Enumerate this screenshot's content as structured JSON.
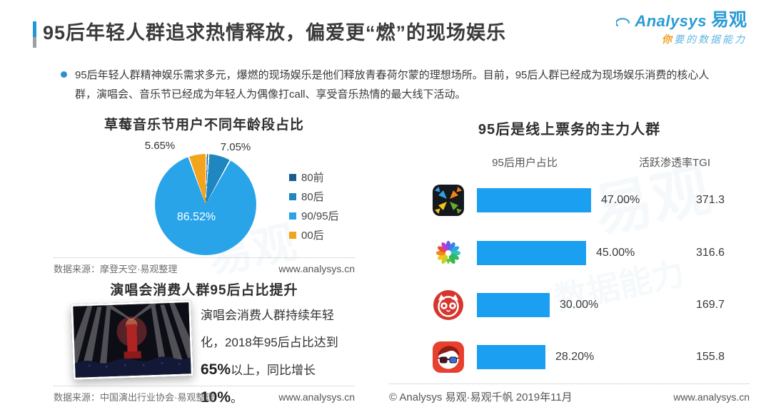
{
  "header": {
    "title": "95后年轻人群追求热情释放，偏爱更“燃”的现场娱乐",
    "logo": {
      "brand_en": "Analysys",
      "brand_cn": "易观",
      "tagline_highlight": "你",
      "tagline_rest": "要的数据能力"
    }
  },
  "summary": "95后年轻人群精神娱乐需求多元，爆燃的现场娱乐是他们释放青春荷尔蒙的理想场所。目前，95后人群已经成为现场娱乐消费的核心人群，演唱会、音乐节已经成为年轻人为偶像打call、享受音乐热情的最大线下活动。",
  "pie_section": {
    "title": "草莓音乐节用户不同年龄段占比",
    "legend": [
      "80前",
      "80后",
      "90/95后",
      "00后"
    ],
    "source": "数据来源：摩登天空·易观整理",
    "site": "www.analysys.cn"
  },
  "concert_section": {
    "title": "演唱会消费人群95后占比提升",
    "desc": {
      "seg1": "演唱会消费人群持续年轻化，",
      "seg2": "2018年95后占比达到",
      "seg3": "65%",
      "seg4": "以上，同比增长",
      "seg5": "10%",
      "seg6": "。"
    },
    "source": "数据来源：中国演出行业协会·易观整理",
    "site": "www.analysys.cn"
  },
  "bar_section": {
    "title": "95后是线上票务的主力人群",
    "col_pct": "95后用户占比",
    "col_tgi": "活跃渗透率TGI",
    "rows": [
      {
        "icon": "motianlun-app-icon",
        "pct": "47.00%",
        "tgi": "371.3"
      },
      {
        "icon": "damai-app-icon",
        "pct": "45.00%",
        "tgi": "316.6"
      },
      {
        "icon": "maoyan-app-icon",
        "pct": "30.00%",
        "tgi": "169.7"
      },
      {
        "icon": "taopiaopiao-app-icon",
        "pct": "28.20%",
        "tgi": "155.8"
      }
    ],
    "footer": "© Analysys 易观·易观千帆 2019年11月",
    "site": "www.analysys.cn"
  },
  "watermarks": {
    "wm1": "易观",
    "wm2": "易观",
    "wm3": "数据能力"
  },
  "colors": {
    "accent_blue": "#2196d9",
    "bar_blue": "#1b9ff0",
    "logo_blue": "#2b9bd4",
    "tagline_orange": "#f0a01e"
  },
  "chart_data": [
    {
      "type": "pie",
      "title": "草莓音乐节用户不同年龄段占比",
      "legend_position": "right",
      "slices": [
        {
          "label": "80前",
          "value": 0.78,
          "display": "",
          "color": "#1c5d8c"
        },
        {
          "label": "80后",
          "value": 7.05,
          "display": "7.05%",
          "color": "#1f86c0"
        },
        {
          "label": "90/95后",
          "value": 86.52,
          "display": "86.52%",
          "color": "#29a4e9"
        },
        {
          "label": "00后",
          "value": 5.65,
          "display": "5.65%",
          "color": "#f2a41c"
        }
      ]
    },
    {
      "type": "bar",
      "orientation": "horizontal",
      "title": "95后是线上票务的主力人群",
      "categories": [
        "motianlun-app",
        "damai-app",
        "maoyan-app",
        "taopiaopiao-app"
      ],
      "series": [
        {
          "name": "95后用户占比",
          "unit": "%",
          "values": [
            47.0,
            45.0,
            30.0,
            28.2
          ]
        },
        {
          "name": "活跃渗透率TGI",
          "values": [
            371.3,
            316.6,
            169.7,
            155.8
          ]
        }
      ],
      "bar_color": "#1b9ff0",
      "xlim": [
        0,
        50
      ]
    }
  ]
}
